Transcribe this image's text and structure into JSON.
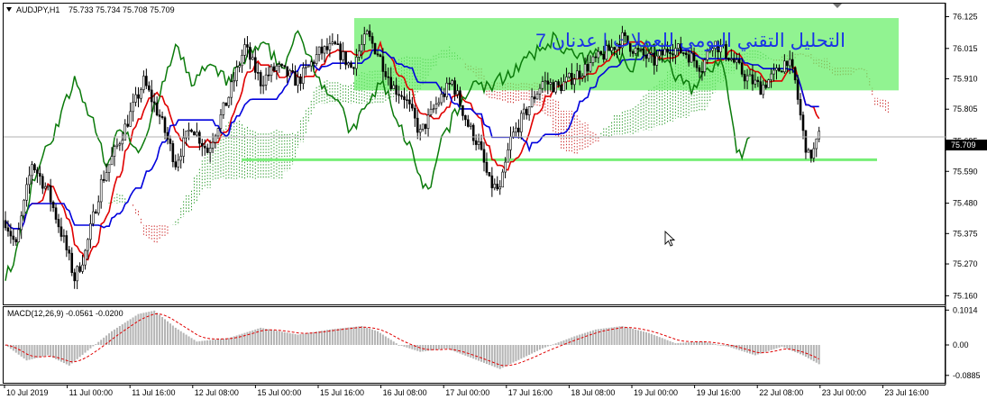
{
  "header": {
    "symbol_tf": "AUDJPY,H1",
    "ohlc": "75.733 75.734 75.708 75.709"
  },
  "annotation": {
    "title_arabic": "التحليل التقني اليومي للعملات | عدنان 7"
  },
  "macd": {
    "label": "MACD(12,26,9) -0.0561 -0.0200",
    "ticks": [
      "0.1014",
      "0.00",
      "-0.0885"
    ]
  },
  "price_axis": {
    "ticks": [
      "76.125",
      "76.015",
      "75.910",
      "75.805",
      "75.695",
      "75.590",
      "75.480",
      "75.375",
      "75.270",
      "75.160"
    ],
    "current_price": "75.709"
  },
  "time_axis": {
    "ticks": [
      "10 Jul 2019",
      "11 Jul 00:00",
      "11 Jul 16:00",
      "12 Jul 08:00",
      "15 Jul 00:00",
      "15 Jul 16:00",
      "16 Jul 08:00",
      "17 Jul 00:00",
      "17 Jul 16:00",
      "18 Jul 08:00",
      "19 Jul 00:00",
      "19 Jul 16:00",
      "22 Jul 08:00",
      "23 Jul 00:00",
      "23 Jul 16:00"
    ]
  },
  "chart_data": {
    "type": "candlestick",
    "symbol": "AUDJPY",
    "timeframe": "H1",
    "ylim": [
      75.13,
      76.17
    ],
    "macd_ylim": [
      -0.11,
      0.11
    ],
    "support_level": 75.63,
    "resistance_zone": [
      75.87,
      76.12
    ],
    "current_price": 75.709,
    "anchors": [
      [
        0,
        75.42
      ],
      [
        4,
        75.33
      ],
      [
        10,
        75.62
      ],
      [
        16,
        75.52
      ],
      [
        22,
        75.35
      ],
      [
        26,
        75.22
      ],
      [
        30,
        75.31
      ],
      [
        36,
        75.55
      ],
      [
        44,
        75.72
      ],
      [
        52,
        75.9
      ],
      [
        58,
        75.78
      ],
      [
        64,
        75.62
      ],
      [
        70,
        75.75
      ],
      [
        76,
        75.66
      ],
      [
        84,
        75.85
      ],
      [
        90,
        76.02
      ],
      [
        96,
        75.9
      ],
      [
        102,
        75.95
      ],
      [
        110,
        75.9
      ],
      [
        118,
        76.0
      ],
      [
        124,
        76.02
      ],
      [
        130,
        75.95
      ],
      [
        136,
        76.06
      ],
      [
        140,
        76.0
      ],
      [
        146,
        75.88
      ],
      [
        150,
        75.85
      ],
      [
        156,
        75.72
      ],
      [
        162,
        75.82
      ],
      [
        168,
        75.9
      ],
      [
        174,
        75.75
      ],
      [
        178,
        75.68
      ],
      [
        182,
        75.55
      ],
      [
        186,
        75.52
      ],
      [
        190,
        75.7
      ],
      [
        196,
        75.8
      ],
      [
        202,
        75.9
      ],
      [
        208,
        75.88
      ],
      [
        214,
        75.92
      ],
      [
        220,
        75.96
      ],
      [
        226,
        76.0
      ],
      [
        232,
        76.05
      ],
      [
        238,
        76.0
      ],
      [
        244,
        75.97
      ],
      [
        250,
        76.02
      ],
      [
        256,
        76.0
      ],
      [
        262,
        75.95
      ],
      [
        266,
        76.04
      ],
      [
        272,
        75.99
      ],
      [
        278,
        75.92
      ],
      [
        284,
        75.88
      ],
      [
        290,
        75.93
      ],
      [
        294,
        75.98
      ],
      [
        297,
        75.9
      ],
      [
        300,
        75.72
      ],
      [
        302,
        75.64
      ],
      [
        304,
        75.66
      ],
      [
        306,
        75.71
      ]
    ],
    "macd_anchors": [
      [
        0,
        0.0
      ],
      [
        8,
        -0.045
      ],
      [
        16,
        -0.03
      ],
      [
        24,
        -0.06
      ],
      [
        32,
        -0.01
      ],
      [
        40,
        0.04
      ],
      [
        50,
        0.09
      ],
      [
        56,
        0.1
      ],
      [
        64,
        0.05
      ],
      [
        72,
        0.01
      ],
      [
        84,
        0.02
      ],
      [
        96,
        0.05
      ],
      [
        110,
        0.03
      ],
      [
        122,
        0.045
      ],
      [
        134,
        0.055
      ],
      [
        140,
        0.04
      ],
      [
        148,
        0.0
      ],
      [
        156,
        -0.02
      ],
      [
        166,
        -0.01
      ],
      [
        176,
        -0.04
      ],
      [
        186,
        -0.07
      ],
      [
        194,
        -0.04
      ],
      [
        202,
        -0.01
      ],
      [
        214,
        0.025
      ],
      [
        222,
        0.045
      ],
      [
        232,
        0.055
      ],
      [
        242,
        0.035
      ],
      [
        252,
        0.005
      ],
      [
        262,
        0.01
      ],
      [
        272,
        -0.005
      ],
      [
        282,
        -0.03
      ],
      [
        292,
        -0.005
      ],
      [
        300,
        -0.03
      ],
      [
        306,
        -0.056
      ]
    ]
  }
}
